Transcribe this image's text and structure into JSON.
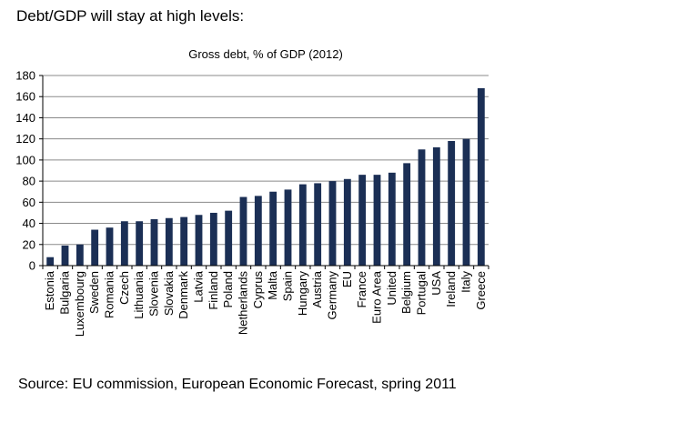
{
  "page": {
    "heading": "Debt/GDP will stay at high levels:",
    "source": "Source: EU commission, European Economic Forecast, spring 2011"
  },
  "chart_data": {
    "type": "bar",
    "title": "Gross debt, % of GDP (2012)",
    "xlabel": "",
    "ylabel": "",
    "ylim": [
      0,
      180
    ],
    "yticks": [
      0,
      20,
      40,
      60,
      80,
      100,
      120,
      140,
      160,
      180
    ],
    "grid": true,
    "legend": "none",
    "bar_color": "#1b2f55",
    "categories": [
      "Estonia",
      "Bulgaria",
      "Luxembourg",
      "Sweden",
      "Romania",
      "Czech",
      "Lithuania",
      "Slovenia",
      "Slovakia",
      "Denmark",
      "Latvia",
      "Finland",
      "Poland",
      "Netherlands",
      "Cyprus",
      "Malta",
      "Spain",
      "Hungary",
      "Austria",
      "Germany",
      "EU",
      "France",
      "Euro Area",
      "United",
      "Belgium",
      "Portugal",
      "USA",
      "Ireland",
      "Italy",
      "Greece"
    ],
    "values": [
      8,
      19,
      20,
      34,
      36,
      42,
      42,
      44,
      45,
      46,
      48,
      50,
      52,
      65,
      66,
      70,
      72,
      77,
      78,
      80,
      82,
      86,
      86,
      88,
      97,
      110,
      112,
      118,
      120,
      168
    ]
  }
}
